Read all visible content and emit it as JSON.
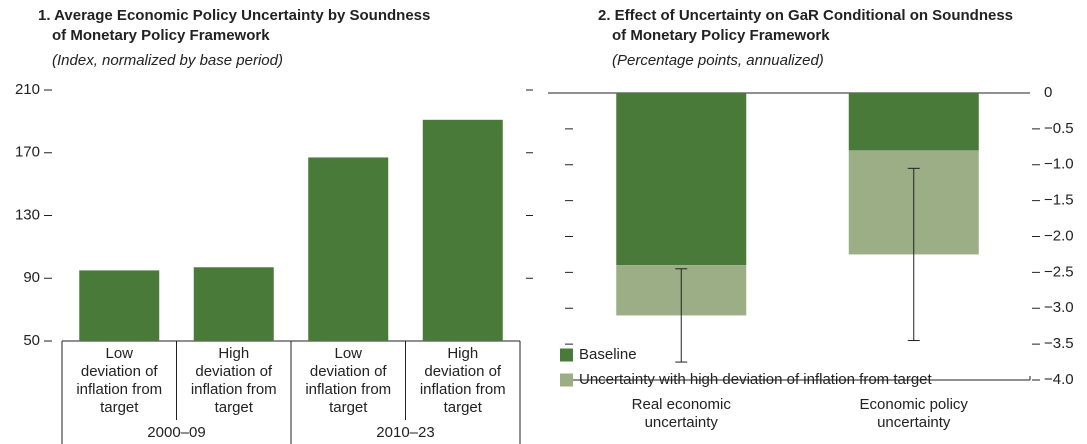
{
  "chart_data": [
    {
      "type": "bar",
      "title": "1. Average Economic Policy Uncertainty by Soundness\nof Monetary Policy Framework",
      "subtitle": "(Index, normalized by base period)",
      "categories": [
        "Low\ndeviation of\ninflation from\ntarget",
        "High\ndeviation of\ninflation from\ntarget",
        "Low\ndeviation of\ninflation from\ntarget",
        "High\ndeviation of\ninflation from\ntarget"
      ],
      "groups": [
        "2000–09",
        "2010–23"
      ],
      "values": [
        95,
        97,
        167,
        191
      ],
      "color": "#4a7a3a",
      "ylim": [
        50,
        210
      ],
      "yticks": [
        50,
        90,
        130,
        170,
        210
      ]
    },
    {
      "type": "stacked_bar",
      "title": "2. Effect of Uncertainty on GaR Conditional on Soundness\nof Monetary Policy Framework",
      "subtitle": "(Percentage points, annualized)",
      "categories": [
        "Real economic\nuncertainty",
        "Economic policy\nuncertainty"
      ],
      "series": [
        {
          "name": "Baseline",
          "color": "#4a7a3a",
          "values": [
            -2.4,
            -0.8
          ]
        },
        {
          "name": "Uncertainty with high deviation of inflation from target",
          "color": "#9cae86",
          "values": [
            -0.7,
            -1.45
          ]
        }
      ],
      "errors": [
        0.65,
        1.2
      ],
      "ylim": [
        -4,
        0
      ],
      "yticks": [
        0,
        {
          "value": -0.5,
          "label": "−0.5"
        },
        {
          "value": -1,
          "label": "−1.0"
        },
        {
          "value": -1.5,
          "label": "−1.5"
        },
        {
          "value": -2,
          "label": "−2.0"
        },
        {
          "value": -2.5,
          "label": "−2.5"
        },
        {
          "value": -3,
          "label": "−3.0"
        },
        {
          "value": -3.5,
          "label": "−3.5"
        },
        {
          "value": -4,
          "label": "−4.0"
        }
      ],
      "legend": "lower left"
    }
  ]
}
